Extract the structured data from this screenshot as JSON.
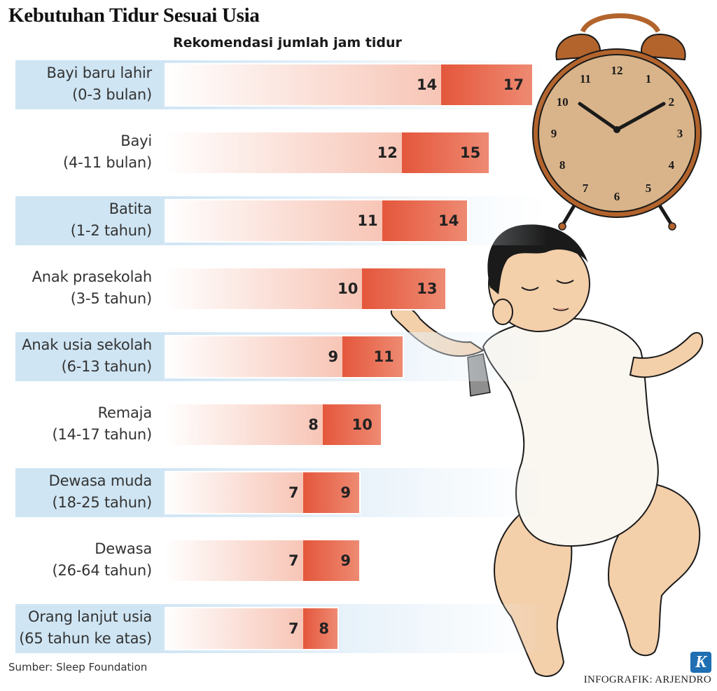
{
  "title": "Kebutuhan Tidur Sesuai Usia",
  "subtitle": "Rekomendasi jumlah jam tidur",
  "source": "Sumber: Sleep Foundation",
  "credit": "INFOGRAFIK: ARJENDRO",
  "logo": "K",
  "clock_numbers": [
    "12",
    "1",
    "2",
    "3",
    "4",
    "5",
    "6",
    "7",
    "8",
    "9",
    "10",
    "11"
  ],
  "colors": {
    "bar_solid": "#e4573c",
    "bar_fade_end": "#f7c5b6",
    "band": "#cfe5f3",
    "clock_face": "#d9b48a",
    "clock_bells": "#b3642d"
  },
  "chart_data": {
    "type": "bar",
    "orientation": "horizontal",
    "title": "Kebutuhan Tidur Sesuai Usia",
    "subtitle": "Rekomendasi jumlah jam tidur",
    "categories": [
      {
        "name": "Bayi baru lahir",
        "range": "(0-3 bulan)"
      },
      {
        "name": "Bayi",
        "range": "(4-11 bulan)"
      },
      {
        "name": "Batita",
        "range": "(1-2 tahun)"
      },
      {
        "name": "Anak prasekolah",
        "range": "(3-5 tahun)"
      },
      {
        "name": "Anak usia sekolah",
        "range": "(6-13 tahun)"
      },
      {
        "name": "Remaja",
        "range": "(14-17 tahun)"
      },
      {
        "name": "Dewasa muda",
        "range": "(18-25 tahun)"
      },
      {
        "name": "Dewasa",
        "range": "(26-64 tahun)"
      },
      {
        "name": "Orang lanjut usia",
        "range": "(65 tahun ke atas)"
      }
    ],
    "min_hours": [
      14,
      12,
      11,
      10,
      9,
      8,
      7,
      7,
      7
    ],
    "max_hours": [
      17,
      15,
      14,
      13,
      11,
      10,
      9,
      9,
      8
    ],
    "shaded_rows": [
      true,
      false,
      true,
      false,
      true,
      false,
      true,
      false,
      true
    ],
    "xlim": [
      0,
      17
    ]
  }
}
